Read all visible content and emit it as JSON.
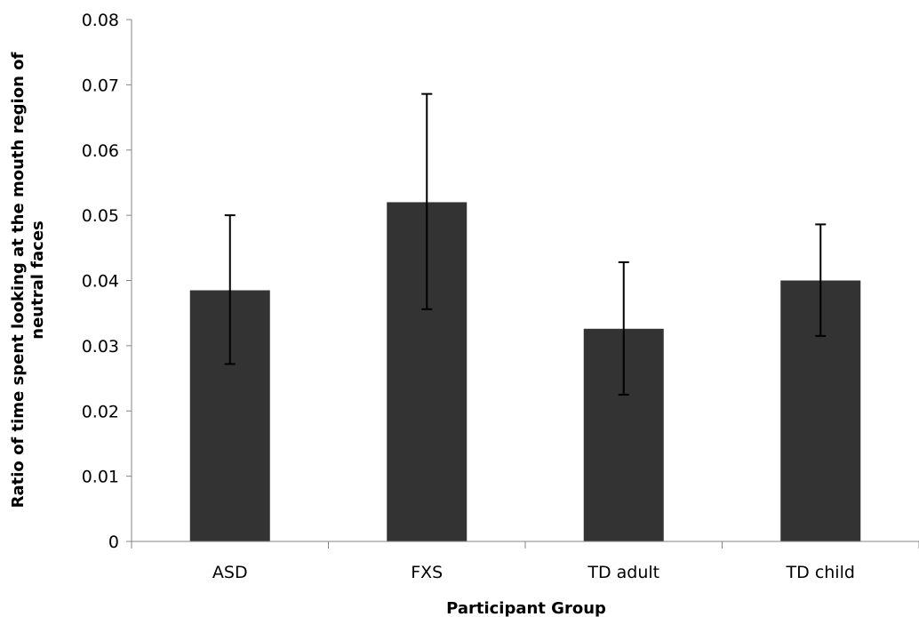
{
  "chart_data": {
    "type": "bar",
    "title": "",
    "xlabel": "Participant Group",
    "ylabel_lines": [
      "Ratio of time spent looking at the mouth region of",
      "neutral faces"
    ],
    "categories": [
      "ASD",
      "FXS",
      "TD adult",
      "TD child"
    ],
    "values": [
      0.0385,
      0.052,
      0.0326,
      0.04
    ],
    "error_bars": [
      {
        "low": 0.0272,
        "high": 0.05
      },
      {
        "low": 0.0356,
        "high": 0.0686
      },
      {
        "low": 0.0225,
        "high": 0.0428
      },
      {
        "low": 0.0315,
        "high": 0.0486
      }
    ],
    "ylim": [
      0,
      0.08
    ],
    "yticks": [
      "0",
      "0.01",
      "0.02",
      "0.03",
      "0.04",
      "0.05",
      "0.06",
      "0.07",
      "0.08"
    ],
    "grid": false,
    "bar_color": "#333333"
  }
}
